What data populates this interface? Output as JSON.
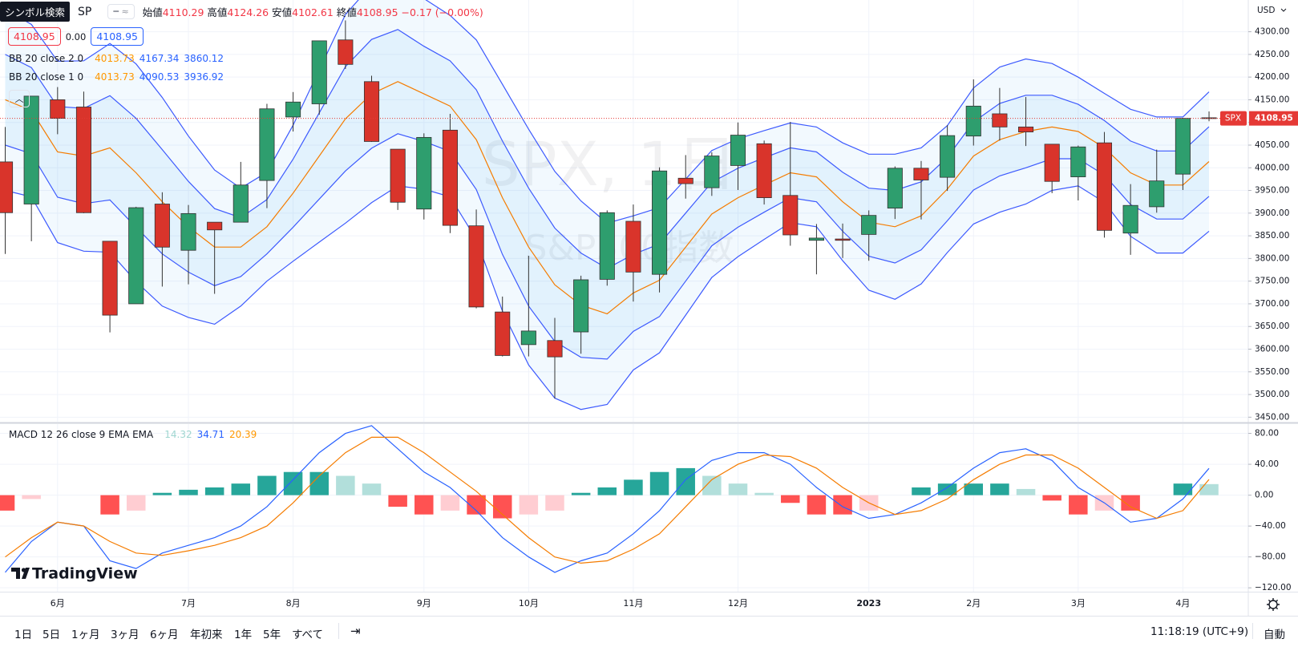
{
  "header": {
    "symbol_search": "シンボル検索",
    "symbol": "SP",
    "ohlc_labels": [
      "始値",
      "高値",
      "安値",
      "終値"
    ],
    "change": "−0.17 (−0.00%)",
    "inputs": [
      "4108.95",
      "0.00",
      "4108.95"
    ],
    "bb2_name": "BB 20 close 2 0",
    "bb1_name": "BB 20 close 1 0",
    "macd_name": "MACD 12 26 close 9 EMA EMA",
    "currency": "USD",
    "price_symbol": "SPX"
  },
  "watermark": {
    "title": "SPX, 1日",
    "subtitle": "S&P500指数"
  },
  "brand": "TradingView",
  "toolbar": {
    "ranges": [
      "1日",
      "5日",
      "1ヶ月",
      "3ヶ月",
      "6ヶ月",
      "年初来",
      "1年",
      "5年",
      "すべて"
    ],
    "time": "11:18:19 (UTC+9)",
    "auto": "自動"
  },
  "chart_data": [
    {
      "type": "candlestick",
      "categories": [
        null,
        null,
        "6月",
        null,
        null,
        null,
        null,
        "7月",
        null,
        null,
        null,
        "8月",
        null,
        null,
        null,
        null,
        "9月",
        null,
        null,
        null,
        "10月",
        null,
        null,
        null,
        "11月",
        null,
        null,
        null,
        "12月",
        null,
        null,
        null,
        null,
        "2023",
        null,
        null,
        null,
        "2月",
        null,
        null,
        null,
        "3月",
        null,
        null,
        null,
        "4月",
        null
      ],
      "open": [
        4013,
        3920,
        4150,
        4134,
        3838,
        3700,
        3920,
        3818,
        3880,
        3880,
        3972,
        4112,
        4141,
        4282,
        4190,
        4041,
        3909,
        4083,
        3872,
        3682,
        3610,
        3619,
        3638,
        3754,
        3882,
        3765,
        3977,
        3956,
        4005,
        4053,
        3939,
        3840,
        3843,
        3853,
        3911,
        3999,
        3979,
        4070,
        4119,
        4090,
        4052,
        3980,
        4055,
        3856,
        3914,
        3986,
        4110.29
      ],
      "high": [
        4090,
        4158,
        4178,
        4168,
        3838,
        3914,
        3946,
        3918,
        3880,
        4013,
        4141,
        4167,
        4280,
        4325,
        4203,
        4041,
        4076,
        4119,
        3908,
        3716,
        3806,
        3669,
        3762,
        3906,
        3919,
        4001,
        4028,
        4034,
        4100,
        4060,
        4101,
        3876,
        3877,
        3906,
        4003,
        4015,
        4094,
        4195,
        4176,
        4156,
        4052,
        4049,
        4079,
        3964,
        4040,
        4110,
        4124.26
      ],
      "low": [
        3810,
        3838,
        4074,
        3900,
        3637,
        3700,
        3738,
        3743,
        3722,
        3880,
        3911,
        4080,
        4117,
        4218,
        4057,
        3907,
        3886,
        3856,
        3690,
        3584,
        3584,
        3491,
        3590,
        3740,
        3705,
        3725,
        3932,
        3938,
        3951,
        3919,
        3828,
        3765,
        3801,
        3795,
        3887,
        3886,
        3949,
        4049,
        4060,
        4048,
        3944,
        3928,
        3846,
        3808,
        3901,
        3951,
        4102.61
      ],
      "close": [
        3901,
        4158,
        4109,
        3901,
        3675,
        3912,
        3825,
        3899,
        3863,
        3962,
        4130,
        4145,
        4280,
        4228,
        4058,
        3924,
        4067,
        3873,
        3693,
        3586,
        3640,
        3583,
        3753,
        3901,
        3770,
        3993,
        3965,
        4026,
        4072,
        3934,
        3852,
        3845,
        3840,
        3895,
        3999,
        3973,
        4071,
        4136,
        4090,
        4079,
        3970,
        4046,
        3862,
        3917,
        3971,
        4109,
        4108.95
      ],
      "up_color": "#2e9e6e",
      "down_color": "#d9342b",
      "last_price_color": "#e53935",
      "series": [
        {
          "type": "line",
          "color": "#f57c00",
          "values": [
            4150,
            4126,
            4035,
            4026,
            4044,
            3989,
            3925,
            3870,
            3825,
            3825,
            3870,
            3944,
            4026,
            4108,
            4163,
            4190,
            4163,
            4136,
            4062,
            3934,
            3825,
            3742,
            3697,
            3678,
            3724,
            3752,
            3825,
            3898,
            3934,
            3962,
            3989,
            3980,
            3925,
            3880,
            3870,
            3894,
            3953,
            4026,
            4062,
            4080,
            4090,
            4080,
            4044,
            3989,
            3962,
            3962,
            4013.73
          ]
        },
        {
          "type": "line",
          "color": "#3d5afe",
          "values": [
            4350,
            4316,
            4235,
            4236,
            4274,
            4229,
            4155,
            4070,
            3995,
            3955,
            3990,
            4094,
            4216,
            4338,
            4403,
            4420,
            4373,
            4336,
            4282,
            4184,
            4085,
            3992,
            3927,
            3878,
            3894,
            3912,
            3975,
            4038,
            4064,
            4082,
            4099,
            4090,
            4055,
            4030,
            4030,
            4044,
            4093,
            4176,
            4222,
            4240,
            4230,
            4200,
            4164,
            4129,
            4112,
            4112,
            4167.34
          ]
        },
        {
          "type": "line",
          "color": "#3d5afe",
          "values": [
            3950,
            3936,
            3835,
            3816,
            3814,
            3749,
            3695,
            3670,
            3655,
            3695,
            3750,
            3794,
            3836,
            3878,
            3923,
            3960,
            3953,
            3936,
            3842,
            3684,
            3565,
            3492,
            3467,
            3478,
            3554,
            3592,
            3675,
            3758,
            3804,
            3842,
            3879,
            3870,
            3795,
            3730,
            3710,
            3744,
            3813,
            3876,
            3902,
            3920,
            3950,
            3960,
            3924,
            3849,
            3812,
            3812,
            3860.12
          ]
        },
        {
          "type": "line",
          "color": "#3d5afe",
          "values": [
            4250,
            4221,
            4135,
            4131,
            4159,
            4109,
            4040,
            3970,
            3910,
            3890,
            3930,
            4019,
            4121,
            4223,
            4283,
            4305,
            4268,
            4236,
            4172,
            4059,
            3955,
            3867,
            3812,
            3778,
            3809,
            3832,
            3900,
            3968,
            3999,
            4022,
            4044,
            4035,
            3990,
            3955,
            3950,
            3969,
            4023,
            4101,
            4142,
            4160,
            4160,
            4140,
            4104,
            4059,
            4037,
            4037,
            4090.53
          ]
        },
        {
          "type": "line",
          "color": "#3d5afe",
          "values": [
            4050,
            4031,
            3935,
            3921,
            3929,
            3869,
            3810,
            3770,
            3740,
            3760,
            3810,
            3869,
            3931,
            3993,
            4043,
            4075,
            4058,
            4036,
            3952,
            3809,
            3695,
            3617,
            3582,
            3578,
            3639,
            3672,
            3750,
            3828,
            3869,
            3902,
            3934,
            3925,
            3860,
            3805,
            3790,
            3819,
            3883,
            3951,
            3982,
            4000,
            4020,
            4020,
            3984,
            3919,
            3887,
            3887,
            3936.92
          ]
        }
      ],
      "band_fills": [
        "rgba(33,150,243,0.06)",
        "rgba(33,150,243,0.07)"
      ],
      "xlim": [
        -0.2,
        47.5
      ],
      "ylim": [
        3440,
        4370
      ],
      "yticks": [
        {
          "value": 3450,
          "label": "3450.00"
        },
        {
          "value": 3500,
          "label": "3500.00"
        },
        {
          "value": 3550,
          "label": "3550.00"
        },
        {
          "value": 3600,
          "label": "3600.00"
        },
        {
          "value": 3650,
          "label": "3650.00"
        },
        {
          "value": 3700,
          "label": "3700.00"
        },
        {
          "value": 3750,
          "label": "3750.00"
        },
        {
          "value": 3800,
          "label": "3800.00"
        },
        {
          "value": 3850,
          "label": "3850.00"
        },
        {
          "value": 3900,
          "label": "3900.00"
        },
        {
          "value": 3950,
          "label": "3950.00"
        },
        {
          "value": 4000,
          "label": "4000.00"
        },
        {
          "value": 4050,
          "label": "4050.00"
        },
        {
          "value": 4100,
          "label": "4100.00"
        },
        {
          "value": 4150,
          "label": "4150.00"
        },
        {
          "value": 4200,
          "label": "4200.00"
        },
        {
          "value": 4250,
          "label": "4250.00"
        },
        {
          "value": 4300,
          "label": "4300.00"
        }
      ],
      "grid": true
    },
    {
      "type": "combo",
      "series": [
        {
          "type": "bar",
          "colors": {
            "pos_rising": "#26a69a",
            "pos_falling": "#b2dfdb",
            "neg_falling": "#ff5252",
            "neg_rising": "#ffcdd2"
          },
          "values": [
            -20,
            -5,
            0,
            0,
            -25,
            -20,
            3,
            7,
            10,
            15,
            25,
            30,
            30,
            25,
            15,
            -15,
            -25,
            -20,
            -25,
            -30,
            -25,
            -20,
            3,
            10,
            20,
            30,
            35,
            25,
            15,
            3,
            -10,
            -25,
            -25,
            -20,
            0,
            10,
            15,
            15,
            15,
            8,
            -7,
            -25,
            -20,
            -20,
            0,
            15,
            14.32
          ]
        },
        {
          "type": "line",
          "color": "#2962ff",
          "values": [
            -100,
            -60,
            -35,
            -40,
            -85,
            -95,
            -75,
            -65,
            -55,
            -40,
            -15,
            20,
            55,
            80,
            90,
            60,
            30,
            10,
            -20,
            -55,
            -80,
            -100,
            -85,
            -75,
            -50,
            -20,
            20,
            45,
            55,
            55,
            40,
            10,
            -15,
            -30,
            -25,
            -10,
            10,
            35,
            55,
            60,
            45,
            10,
            -10,
            -35,
            -30,
            -5,
            34.71
          ]
        },
        {
          "type": "line",
          "color": "#f57c00",
          "values": [
            -80,
            -55,
            -35,
            -40,
            -60,
            -75,
            -78,
            -72,
            -65,
            -55,
            -40,
            -10,
            25,
            55,
            75,
            75,
            55,
            30,
            5,
            -25,
            -55,
            -80,
            -88,
            -85,
            -70,
            -50,
            -15,
            20,
            40,
            52,
            50,
            35,
            10,
            -10,
            -25,
            -20,
            -5,
            20,
            40,
            52,
            52,
            35,
            10,
            -15,
            -30,
            -20,
            20.39
          ]
        }
      ],
      "ylim": [
        -125,
        92
      ],
      "yticks": [
        {
          "value": -120,
          "label": "−120.00"
        },
        {
          "value": -80,
          "label": "−80.00"
        },
        {
          "value": -40,
          "label": "−40.00"
        },
        {
          "value": 0,
          "label": "0.00"
        },
        {
          "value": 40,
          "label": "40.00"
        },
        {
          "value": 80,
          "label": "80.00"
        }
      ],
      "grid": true
    }
  ]
}
